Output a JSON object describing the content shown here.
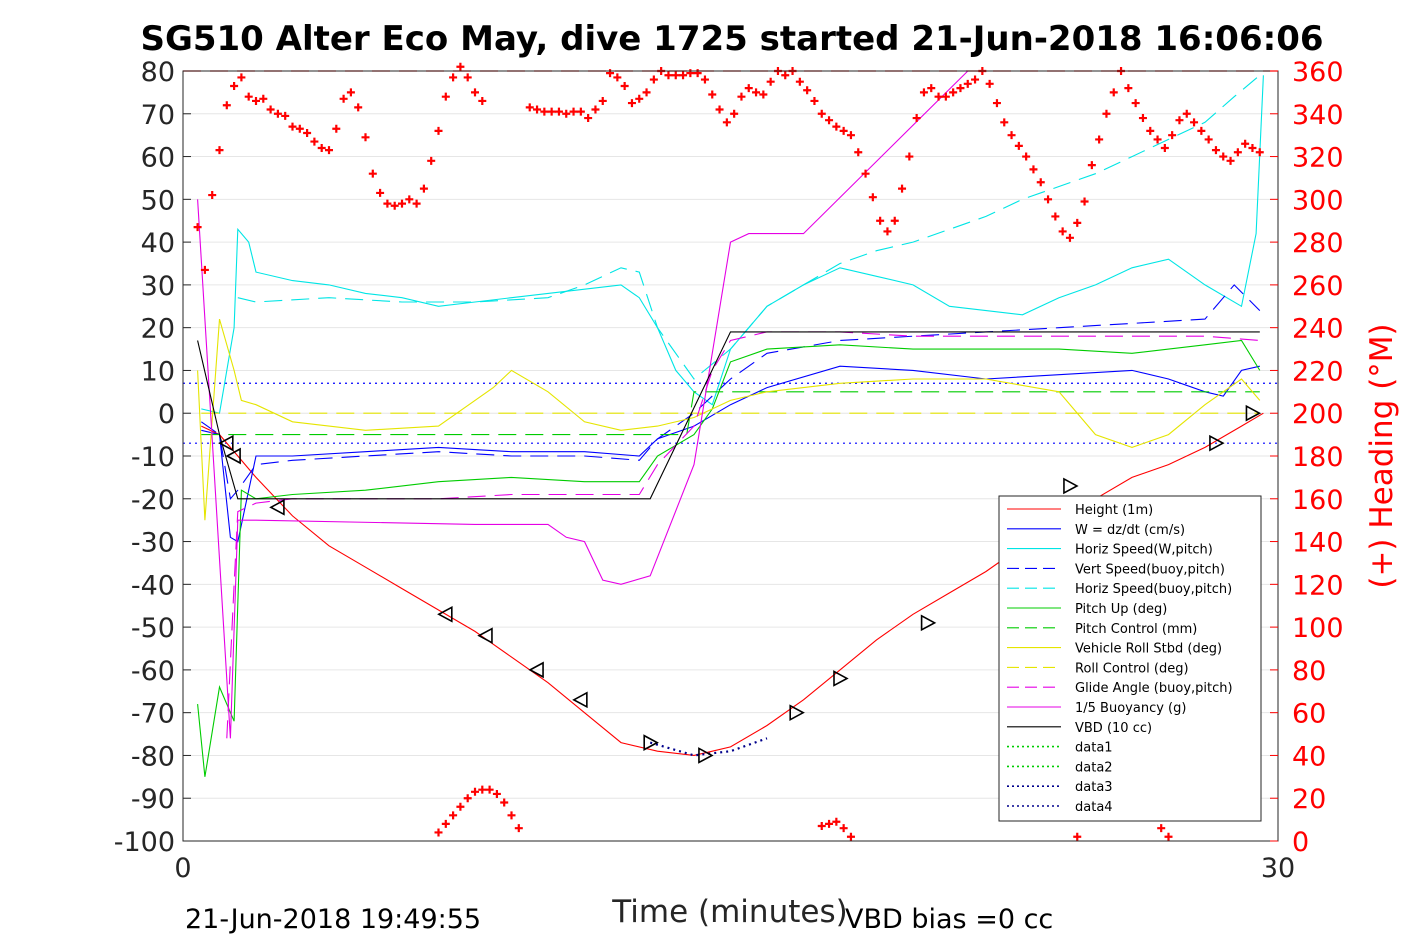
{
  "chart_data": {
    "type": "line",
    "title": "SG510 Alter Eco May, dive 1725 started 21-Jun-2018 16:06:06",
    "xlabel": "Time (minutes)",
    "ylabel": "",
    "y2label": "(+) Heading (°M)",
    "xlim": [
      0,
      30
    ],
    "ylim": [
      -100,
      80
    ],
    "y2lim": [
      0,
      360
    ],
    "xticks": [
      "0",
      "30"
    ],
    "yticks": [
      "80",
      "70",
      "60",
      "50",
      "40",
      "30",
      "20",
      "10",
      "0",
      "-10",
      "-20",
      "-30",
      "-40",
      "-50",
      "-60",
      "-70",
      "-80",
      "-90",
      "-100"
    ],
    "y2ticks": [
      "360",
      "340",
      "320",
      "300",
      "280",
      "260",
      "240",
      "220",
      "200",
      "180",
      "160",
      "140",
      "120",
      "100",
      "80",
      "60",
      "40",
      "20",
      "0"
    ],
    "grid": true,
    "legend_position": "bottom-right",
    "footer_left": "21-Jun-2018 19:49:55",
    "footer_right": "VBD bias =0 cc",
    "series": [
      {
        "name": "Height (1m)",
        "color": "#ff0000",
        "dash": "solid",
        "x": [
          0.5,
          1.0,
          1.5,
          2.0,
          3.0,
          4.0,
          5.0,
          6.0,
          7.0,
          8.0,
          9.0,
          10.0,
          11.0,
          12.0,
          13.0,
          14.0,
          14.5,
          15.0,
          16.0,
          17.0,
          18.0,
          19.0,
          20.0,
          21.0,
          22.0,
          23.0,
          24.0,
          25.0,
          26.0,
          27.0,
          28.0,
          29.0,
          29.6
        ],
        "y": [
          -3,
          -5,
          -10,
          -15,
          -24,
          -31,
          -36,
          -41,
          -46,
          -51,
          -57,
          -63,
          -70,
          -77,
          -79,
          -80,
          -79,
          -78,
          -73,
          -67,
          -60,
          -53,
          -47,
          -42,
          -37,
          -31,
          -25,
          -20,
          -15,
          -12,
          -8,
          -3,
          0
        ]
      },
      {
        "name": "W = dz/dt (cm/s)",
        "color": "#0000ff",
        "dash": "solid",
        "x": [
          0.5,
          1.0,
          1.3,
          1.5,
          2.0,
          3.0,
          5.0,
          7.0,
          9.0,
          11.0,
          12.5,
          13.0,
          14.0,
          15.0,
          16.0,
          18.0,
          20.0,
          22.0,
          24.0,
          26.0,
          27.0,
          28.0,
          28.5,
          29.0,
          29.5
        ],
        "y": [
          -4,
          -5,
          -29,
          -30,
          -10,
          -10,
          -9,
          -8,
          -9,
          -9,
          -10,
          -6,
          -3,
          2,
          6,
          11,
          10,
          8,
          9,
          10,
          8,
          5,
          4,
          10,
          11
        ]
      },
      {
        "name": "Horiz Speed(W,pitch)",
        "color": "#00e5e5",
        "dash": "solid",
        "x": [
          0.5,
          1.0,
          1.4,
          1.5,
          1.8,
          2.0,
          3.0,
          4.0,
          5.0,
          6.0,
          7.0,
          8.0,
          9.0,
          10.0,
          11.0,
          12.0,
          12.5,
          13.0,
          13.5,
          14.0,
          14.5,
          15.0,
          16.0,
          17.0,
          18.0,
          19.0,
          20.0,
          21.0,
          22.0,
          23.0,
          24.0,
          25.0,
          26.0,
          27.0,
          28.0,
          29.0,
          29.4,
          29.6
        ],
        "y": [
          1,
          0,
          20,
          43,
          40,
          33,
          31,
          30,
          28,
          27,
          25,
          26,
          27,
          28,
          29,
          30,
          27,
          20,
          10,
          5,
          2,
          15,
          25,
          30,
          34,
          32,
          30,
          25,
          24,
          23,
          27,
          30,
          34,
          36,
          30,
          25,
          42,
          79
        ]
      },
      {
        "name": "Vert Speed(buoy,pitch)",
        "color": "#0000ff",
        "dash": "dash",
        "x": [
          0.5,
          1.0,
          1.3,
          1.5,
          2.0,
          3.0,
          5.0,
          7.0,
          9.0,
          11.0,
          12.5,
          13.0,
          14.0,
          15.0,
          16.0,
          18.0,
          20.0,
          22.0,
          24.0,
          26.0,
          28.0,
          28.8,
          29.5
        ],
        "y": [
          -2,
          -5,
          -20,
          -18,
          -12,
          -11,
          -10,
          -9,
          -10,
          -10,
          -11,
          -6,
          0,
          8,
          14,
          17,
          18,
          19,
          20,
          21,
          22,
          30,
          24
        ]
      },
      {
        "name": "Horiz Speed(buoy,pitch)",
        "color": "#00e5e5",
        "dash": "dash",
        "x": [
          1.5,
          2.0,
          4.0,
          6.0,
          8.0,
          10.0,
          11.0,
          12.0,
          12.5,
          13.0,
          14.0,
          15.0,
          16.0,
          17.0,
          18.0,
          19.0,
          20.0,
          21.0,
          22.0,
          23.0,
          24.0,
          25.0,
          26.0,
          27.0,
          28.0,
          28.8,
          29.5
        ],
        "y": [
          27,
          26,
          27,
          26,
          26,
          27,
          30,
          34,
          33,
          20,
          8,
          15,
          25,
          30,
          35,
          38,
          40,
          43,
          46,
          50,
          53,
          56,
          60,
          64,
          68,
          74,
          79
        ]
      },
      {
        "name": "Pitch Up (deg)",
        "color": "#00cc00",
        "dash": "solid",
        "x": [
          0.4,
          0.6,
          1.0,
          1.4,
          1.6,
          2.0,
          3.0,
          5.0,
          7.0,
          9.0,
          11.0,
          12.5,
          13.0,
          14.0,
          14.5,
          15.0,
          16.0,
          18.0,
          20.0,
          22.0,
          24.0,
          26.0,
          28.0,
          29.0,
          29.5
        ],
        "y": [
          -68,
          -85,
          -64,
          -72,
          -18,
          -20,
          -19,
          -18,
          -16,
          -15,
          -16,
          -16,
          -10,
          -5,
          1,
          12,
          15,
          16,
          15,
          15,
          15,
          14,
          16,
          17,
          10
        ]
      },
      {
        "name": "Pitch Control (mm)",
        "color": "#00cc00",
        "dash": "dash",
        "x": [
          0.5,
          1.5,
          2.0,
          13.8,
          14.0,
          29.5
        ],
        "y": [
          -5,
          -5,
          -5,
          -5,
          5,
          5
        ]
      },
      {
        "name": "Vehicle Roll Stbd (deg)",
        "color": "#e5e500",
        "dash": "solid",
        "x": [
          0.4,
          0.6,
          1.0,
          1.4,
          1.6,
          2.0,
          3.0,
          5.0,
          7.0,
          8.5,
          9.0,
          10.0,
          11.0,
          12.0,
          13.0,
          14.0,
          15.0,
          16.0,
          18.0,
          20.0,
          22.0,
          24.0,
          25.0,
          26.0,
          27.0,
          28.0,
          29.0,
          29.5
        ],
        "y": [
          10,
          -25,
          22,
          10,
          3,
          2,
          -2,
          -4,
          -3,
          6,
          10,
          5,
          -2,
          -4,
          -3,
          -1,
          3,
          5,
          7,
          8,
          8,
          5,
          -5,
          -8,
          -5,
          2,
          8,
          3
        ]
      },
      {
        "name": "Roll Control (deg)",
        "color": "#e5e500",
        "dash": "dash",
        "x": [
          0.5,
          29.5
        ],
        "y": [
          0,
          0
        ]
      },
      {
        "name": "Glide Angle (buoy,pitch)",
        "color": "#e500e5",
        "dash": "dash",
        "x": [
          1.2,
          1.4,
          1.5,
          2.0,
          3.0,
          5.0,
          7.0,
          9.0,
          11.0,
          12.5,
          13.0,
          14.0,
          14.5,
          15.0,
          16.0,
          18.0,
          20.0,
          22.0,
          24.0,
          26.0,
          28.0,
          29.5
        ],
        "y": [
          -76,
          -40,
          -23,
          -21,
          -20,
          -20,
          -20,
          -19,
          -19,
          -19,
          -12,
          -3,
          10,
          17,
          19,
          19,
          18,
          18,
          18,
          18,
          18,
          17
        ]
      },
      {
        "name": "1/5 Buoyancy (g)",
        "color": "#e500e5",
        "dash": "solid",
        "x": [
          0.4,
          1.3,
          1.5,
          2.0,
          8.0,
          10.0,
          10.5,
          11.0,
          11.5,
          12.0,
          12.8,
          14.0,
          15.0,
          15.5,
          17.0,
          21.5,
          30.0
        ],
        "y": [
          50,
          -76,
          -25,
          -25,
          -26,
          -26,
          -29,
          -30,
          -39,
          -40,
          -38,
          -12,
          40,
          42,
          42,
          80,
          80
        ]
      },
      {
        "name": "VBD (10 cc)",
        "color": "#000000",
        "dash": "solid",
        "x": [
          0.4,
          1.0,
          1.5,
          2.0,
          12.8,
          15.0,
          15.5,
          29.5
        ],
        "y": [
          17,
          -5,
          -20,
          -20,
          -20,
          19,
          19,
          19
        ]
      },
      {
        "name": "data1",
        "color": "#00cc00",
        "dash": "dot",
        "x": [],
        "y": []
      },
      {
        "name": "data2",
        "color": "#00cc00",
        "dash": "dot",
        "x": [],
        "y": []
      },
      {
        "name": "data3",
        "color": "#00008b",
        "dash": "dot",
        "x": [
          12.8,
          14.0,
          15.0,
          16.0
        ],
        "y": [
          -77,
          -80,
          -79,
          -76
        ]
      },
      {
        "name": "data4",
        "color": "#00008b",
        "dash": "dot",
        "x": [],
        "y": []
      }
    ],
    "ref_lines": [
      {
        "color": "#ff0000",
        "dash": "dash",
        "y": 80
      },
      {
        "color": "#0000ff",
        "dash": "dot",
        "y": 7
      },
      {
        "color": "#0000ff",
        "dash": "dot",
        "y": -7
      }
    ],
    "heading_points": {
      "color": "#ff0000",
      "x": [
        0.4,
        0.6,
        0.8,
        1.0,
        1.2,
        1.4,
        1.6,
        1.8,
        2.0,
        2.2,
        2.4,
        2.6,
        2.8,
        3.0,
        3.2,
        3.4,
        3.6,
        3.8,
        4.0,
        4.2,
        4.4,
        4.6,
        4.8,
        5.0,
        5.2,
        5.4,
        5.6,
        5.8,
        6.0,
        6.2,
        6.4,
        6.6,
        6.8,
        7.0,
        7.2,
        7.4,
        7.6,
        7.8,
        8.0,
        8.2,
        9.5,
        9.7,
        9.9,
        10.1,
        10.3,
        10.5,
        10.7,
        10.9,
        11.1,
        11.3,
        11.5,
        11.7,
        11.9,
        12.1,
        12.3,
        12.5,
        12.7,
        12.9,
        13.1,
        13.3,
        13.5,
        13.7,
        13.9,
        14.1,
        14.3,
        14.5,
        14.7,
        14.9,
        15.1,
        15.3,
        15.5,
        15.7,
        15.9,
        16.1,
        16.3,
        16.5,
        16.7,
        16.9,
        17.1,
        17.3,
        17.5,
        17.7,
        17.9,
        18.1,
        18.3,
        18.5,
        18.7,
        18.9,
        19.1,
        19.3,
        19.5,
        19.7,
        19.9,
        20.1,
        20.3,
        20.5,
        20.7,
        20.9,
        21.1,
        21.3,
        21.5,
        21.7,
        21.9,
        22.1,
        22.3,
        22.5,
        22.7,
        22.9,
        23.1,
        23.3,
        23.5,
        23.7,
        23.9,
        24.1,
        24.3,
        24.5,
        24.7,
        24.9,
        25.1,
        25.3,
        25.5,
        25.7,
        25.9,
        26.1,
        26.3,
        26.5,
        26.7,
        26.9,
        27.1,
        27.3,
        27.5,
        27.7,
        27.9,
        28.1,
        28.3,
        28.5,
        28.7,
        28.9,
        29.1,
        29.3,
        29.5
      ],
      "y": [
        287,
        267,
        302,
        323,
        344,
        353,
        357,
        348,
        346,
        347,
        342,
        340,
        339,
        334,
        333,
        331,
        327,
        324,
        323,
        333,
        347,
        350,
        343,
        329,
        312,
        303,
        298,
        297,
        298,
        300,
        298,
        305,
        318,
        332,
        348,
        357,
        362,
        357,
        350,
        346,
        343,
        342,
        341,
        341,
        341,
        340,
        341,
        341,
        338,
        342,
        346,
        359,
        357,
        353,
        345,
        347,
        350,
        356,
        360,
        358,
        358,
        358,
        359,
        359,
        356,
        349,
        342,
        336,
        340,
        348,
        352,
        350,
        349,
        355,
        360,
        358,
        360,
        355,
        351,
        346,
        340,
        337,
        334,
        332,
        330,
        322,
        312,
        301,
        290,
        285,
        290,
        305,
        320,
        338,
        350,
        352,
        348,
        348,
        350,
        352,
        354,
        356,
        360,
        354,
        345,
        336,
        330,
        325,
        320,
        314,
        308,
        300,
        292,
        285,
        282,
        289,
        299,
        316,
        328,
        340,
        350,
        360,
        352,
        345,
        338,
        332,
        328,
        324,
        330,
        337,
        340,
        336,
        332,
        328,
        323,
        320,
        318,
        322,
        326,
        324,
        322
      ]
    },
    "heading_points_low": {
      "x": [
        7.0,
        7.2,
        7.4,
        7.6,
        7.8,
        8.0,
        8.2,
        8.4,
        8.6,
        8.8,
        9.0,
        9.2,
        17.5,
        17.7,
        17.9,
        18.1,
        18.3,
        24.5,
        26.8,
        27.0
      ],
      "y": [
        4,
        8,
        12,
        16,
        20,
        23,
        24,
        24,
        22,
        18,
        12,
        6,
        7,
        8,
        9,
        6,
        2,
        2,
        6,
        2
      ]
    },
    "depth_markers": {
      "x": [
        1.2,
        1.4,
        2.6,
        7.2,
        8.3,
        9.7,
        10.9,
        12.8,
        14.3,
        16.8,
        18.0,
        20.4,
        24.3,
        28.3,
        29.3
      ],
      "y": [
        -7,
        -10,
        -22,
        -47,
        -52,
        -60,
        -67,
        -77,
        -80,
        -70,
        -62,
        -49,
        -17,
        -7,
        0
      ]
    }
  }
}
